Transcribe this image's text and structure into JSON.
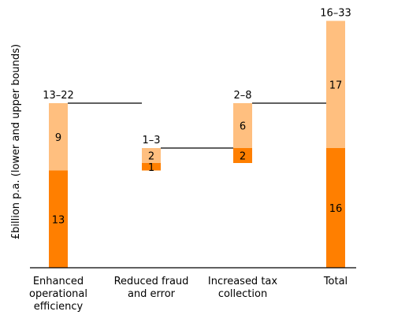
{
  "chart_data": {
    "type": "bar",
    "subtype": "waterfall-stacked",
    "title": "",
    "xlabel": "",
    "ylabel": "£billion p.a. (lower and upper bounds)",
    "ylim": [
      0,
      34
    ],
    "grid": false,
    "legend": "none",
    "categories": [
      [
        "Enhanced",
        "operational",
        "efficiency"
      ],
      [
        "Reduced fraud",
        "and error"
      ],
      [
        "Increased tax",
        "collection"
      ],
      [
        "Total"
      ]
    ],
    "bars": [
      {
        "base": 0,
        "lower": 13,
        "upper_increment": 9,
        "range_label": "13–22"
      },
      {
        "base": 13,
        "lower": 1,
        "upper_increment": 2,
        "range_label": "1–3"
      },
      {
        "base": 14,
        "lower": 2,
        "upper_increment": 6,
        "range_label": "2–8"
      },
      {
        "base": 0,
        "lower": 16,
        "upper_increment": 17,
        "range_label": "16–33"
      }
    ],
    "segment_labels": [
      {
        "lower": "13",
        "upper": "9"
      },
      {
        "lower": "1",
        "upper": "2"
      },
      {
        "lower": "2",
        "upper": "6"
      },
      {
        "lower": "16",
        "upper": "17"
      }
    ]
  },
  "colors": {
    "lower_bound": "#ff7f00",
    "upper_increment": "#ffbf7f",
    "axis": "#000000",
    "connector": "#000000"
  }
}
